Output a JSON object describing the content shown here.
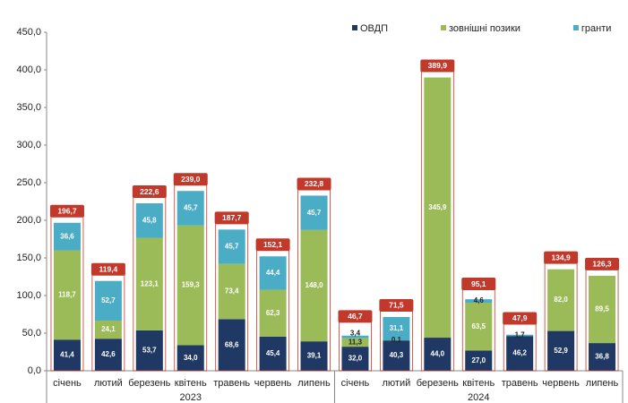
{
  "chart_data": {
    "type": "stacked-bar",
    "groups": [
      {
        "label": "2023",
        "categories": [
          "січень",
          "лютий",
          "березень",
          "квітень",
          "травень",
          "червень",
          "липень"
        ]
      },
      {
        "label": "2024",
        "categories": [
          "січень",
          "лютий",
          "березень",
          "квітень",
          "травень",
          "червень",
          "липень"
        ]
      }
    ],
    "series": [
      {
        "name": "ОВДП",
        "color": "#1f3864",
        "values": [
          41.4,
          42.6,
          53.7,
          34.0,
          68.6,
          45.4,
          39.1,
          32.0,
          40.3,
          44.0,
          27.0,
          46.2,
          52.9,
          36.8
        ],
        "value_labels": [
          "41,4",
          "42,6",
          "53,7",
          "34,0",
          "68,6",
          "45,4",
          "39,1",
          "32,0",
          "40,3",
          "44,0",
          "27,0",
          "46,2",
          "52,9",
          "36,8"
        ]
      },
      {
        "name": "зовнішні позики",
        "color": "#9bbb59",
        "values": [
          118.7,
          24.1,
          123.1,
          159.3,
          73.4,
          62.3,
          148.0,
          11.3,
          0.1,
          345.9,
          63.5,
          null,
          82.0,
          89.5
        ],
        "value_labels": [
          "118,7",
          "24,1",
          "123,1",
          "159,3",
          "73,4",
          "62,3",
          "148,0",
          "11,3",
          "0,1",
          "345,9",
          "63,5",
          null,
          "82,0",
          "89,5"
        ]
      },
      {
        "name": "гранти",
        "color": "#4bacc6",
        "values": [
          36.6,
          52.7,
          45.8,
          45.7,
          45.7,
          44.4,
          45.7,
          3.4,
          31.1,
          null,
          4.6,
          1.7,
          null,
          null
        ],
        "value_labels": [
          "36,6",
          "52,7",
          "45,8",
          "45,7",
          "45,7",
          "44,4",
          "45,7",
          "3,4",
          "31,1",
          null,
          "4,6",
          "1,7",
          null,
          null
        ]
      }
    ],
    "totals": [
      196.7,
      119.4,
      222.6,
      239.0,
      187.7,
      152.1,
      232.8,
      46.7,
      71.5,
      389.9,
      95.1,
      47.9,
      134.9,
      126.3
    ],
    "total_labels": [
      "196,7",
      "119,4",
      "222,6",
      "239,0",
      "187,7",
      "152,1",
      "232,8",
      "46,7",
      "71,5",
      "389,9",
      "95,1",
      "47,9",
      "134,9",
      "126,3"
    ],
    "total_color": "#c0392b",
    "ylim": [
      0,
      450
    ],
    "yticks": [
      {
        "value": 0,
        "label": "0,0"
      },
      {
        "value": 50,
        "label": "50,0"
      },
      {
        "value": 100,
        "label": "100,0"
      },
      {
        "value": 150,
        "label": "150,0"
      },
      {
        "value": 200,
        "label": "200,0"
      },
      {
        "value": 250,
        "label": "250,0"
      },
      {
        "value": 300,
        "label": "300,0"
      },
      {
        "value": 350,
        "label": "350,0"
      },
      {
        "value": 400,
        "label": "400,0"
      },
      {
        "value": 450,
        "label": "450,0"
      }
    ],
    "legend": "top-right"
  }
}
